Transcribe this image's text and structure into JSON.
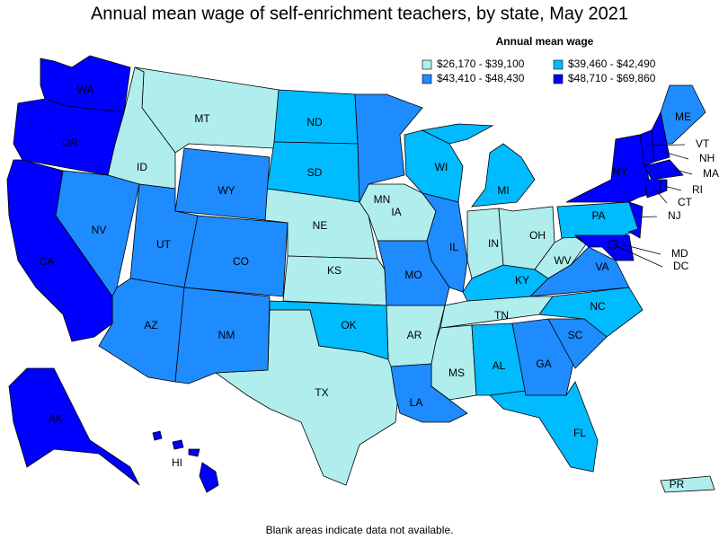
{
  "title": "Annual mean wage of self-enrichment teachers, by state, May 2021",
  "legend": {
    "title": "Annual mean wage",
    "items": [
      {
        "label": "$26,170 - $39,100",
        "color": "#b0eeee",
        "states": [
          "MT",
          "ID",
          "NE",
          "KS",
          "IA",
          "TX",
          "AR",
          "MS",
          "TN",
          "IN",
          "OH",
          "WV",
          "PR"
        ]
      },
      {
        "label": "$39,460 - $42,490",
        "color": "#00bbff",
        "states": [
          "ND",
          "SD",
          "WI",
          "MI",
          "OK",
          "KY",
          "NC",
          "AL",
          "FL",
          "PA"
        ]
      },
      {
        "label": "$43,410 - $48,430",
        "color": "#1e8cff",
        "states": [
          "NV",
          "UT",
          "WY",
          "CO",
          "AZ",
          "NM",
          "MN",
          "IL",
          "MO",
          "VA",
          "LA",
          "GA",
          "SC",
          "ME"
        ]
      },
      {
        "label": "$48,710 - $69,860",
        "color": "#0000ff",
        "states": [
          "WA",
          "OR",
          "CA",
          "AK",
          "HI",
          "NY",
          "VT",
          "NH",
          "MA",
          "CT",
          "RI",
          "NJ",
          "MD",
          "DC"
        ]
      }
    ]
  },
  "footnote": "Blank areas indicate data not available."
}
